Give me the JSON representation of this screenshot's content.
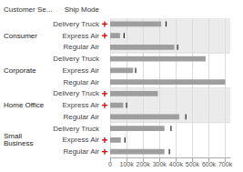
{
  "chart_data": {
    "type": "bar",
    "orientation": "horizontal",
    "categories": [
      "Delivery Truck",
      "Express Air",
      "Regular Air",
      "Delivery Truck",
      "Express Air",
      "Regular Air",
      "Delivery Truck",
      "Express Air",
      "Regular Air",
      "Delivery Truck",
      "Express Air",
      "Regular Air"
    ],
    "groups": [
      "Consumer",
      "Corporate",
      "Home Office",
      "Small\nBusiness"
    ],
    "group_header": "Customer Se...",
    "category_header": "Ship Mode",
    "values": [
      310000,
      60000,
      390000,
      580000,
      140000,
      700000,
      290000,
      80000,
      420000,
      330000,
      65000,
      330000
    ],
    "color": "#9e9e9e",
    "reference_lines": {
      "values": [
        340000,
        85000,
        410000,
        null,
        155000,
        null,
        null,
        100000,
        460000,
        370000,
        90000,
        360000
      ],
      "color": "#222222"
    },
    "kpi_negative": {
      "values": [
        true,
        true,
        false,
        false,
        false,
        false,
        true,
        true,
        false,
        false,
        true,
        true
      ],
      "color": "#cc0000",
      "marker": "plus"
    },
    "band_color": "#ebebeb",
    "xlim": [
      0,
      730000
    ],
    "xticks": [
      0,
      {
        "value": 100000,
        "label": "100k"
      },
      {
        "value": 200000,
        "label": "200k"
      },
      {
        "value": 300000,
        "label": "300k"
      },
      {
        "value": 400000,
        "label": "400k"
      },
      {
        "value": 500000,
        "label": "500k"
      },
      {
        "value": 600000,
        "label": "600k"
      },
      {
        "value": 700000,
        "label": "700k"
      }
    ],
    "grid": true
  }
}
